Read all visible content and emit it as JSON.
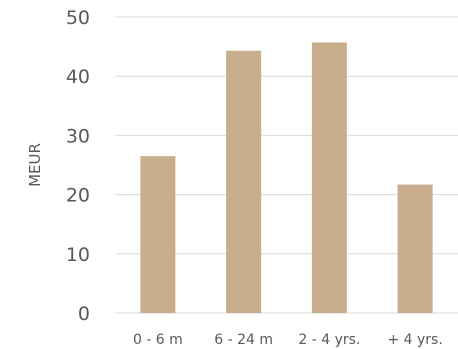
{
  "chart_data": {
    "type": "bar",
    "categories": [
      "0 - 6 m",
      "6 - 24 m",
      "2 - 4 yrs.",
      "+ 4 yrs."
    ],
    "values": [
      26.5,
      44.3,
      45.7,
      21.7
    ],
    "title": "",
    "xlabel": "",
    "ylabel": "MEUR",
    "ylim": [
      0,
      50
    ],
    "yticks": [
      0,
      10,
      20,
      30,
      40,
      50
    ],
    "grid": true,
    "legend": "none",
    "bar_color": "#c8ae8d"
  }
}
